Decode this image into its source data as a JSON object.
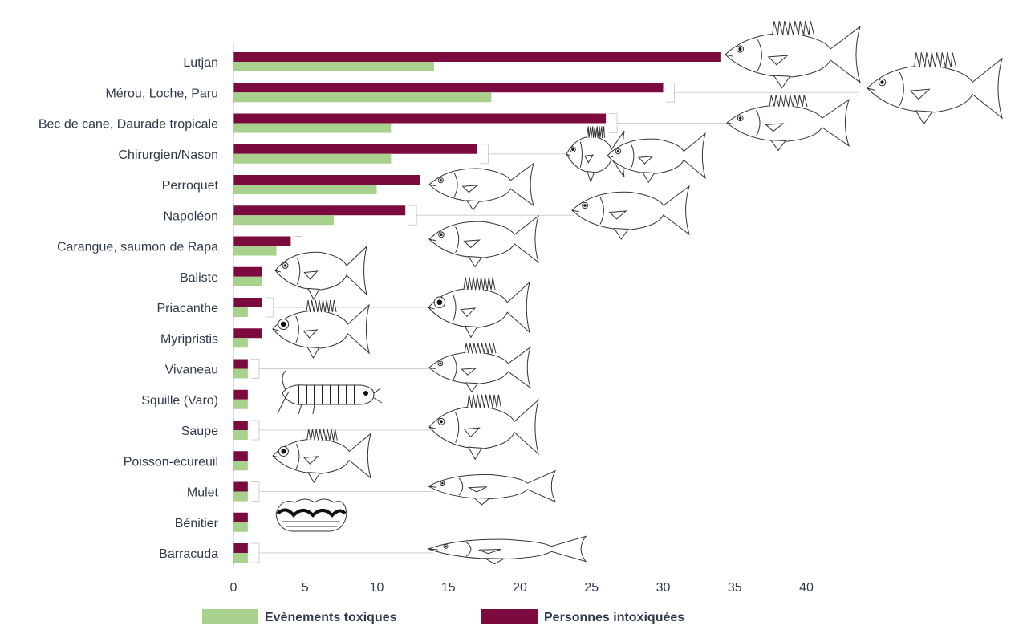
{
  "chart_data": {
    "type": "bar",
    "orientation": "horizontal",
    "categories": [
      "Lutjan",
      "Mérou, Loche, Paru",
      "Bec de cane, Daurade tropicale",
      "Chirurgien/Nason",
      "Perroquet",
      "Napoléon",
      "Carangue, saumon de Rapa",
      "Baliste",
      "Priacanthe",
      "Myripristis",
      "Vivaneau",
      "Squille (Varo)",
      "Saupe",
      "Poisson-écureuil",
      "Mulet",
      "Bénitier",
      "Barracuda"
    ],
    "series": [
      {
        "name": "Personnes intoxiquées",
        "color": "#7b0a3e",
        "values": [
          34,
          30,
          26,
          17,
          13,
          12,
          4,
          2,
          2,
          2,
          1,
          1,
          1,
          1,
          1,
          1,
          1
        ]
      },
      {
        "name": "Evènements toxiques",
        "color": "#a9d18e",
        "values": [
          14,
          18,
          11,
          11,
          10,
          7,
          3,
          2,
          1,
          1,
          1,
          1,
          1,
          1,
          1,
          1,
          1
        ]
      }
    ],
    "xticks": [
      "0",
      "5",
      "10",
      "15",
      "20",
      "25",
      "30",
      "35",
      "40"
    ],
    "xlim": [
      0,
      40
    ],
    "title": "",
    "xlabel": "",
    "ylabel": "",
    "grid": false,
    "legend_position": "bottom",
    "legend": [
      {
        "label": "Evènements toxiques",
        "color": "#a9d18e"
      },
      {
        "label": "Personnes intoxiquées",
        "color": "#7b0a3e"
      }
    ]
  },
  "illustrations": [
    "fish-icon",
    "grouper-icon",
    "snapper-icon",
    "surgeonfish-icon",
    "parrotfish-icon",
    "napoleon-wrasse-icon",
    "trevally-icon",
    "triggerfish-icon",
    "bigeye-icon",
    "soldierfish-icon",
    "squirrelfish-icon",
    "mantis-shrimp-icon",
    "bream-icon",
    "mullet-icon",
    "giant-clam-icon",
    "barracuda-icon"
  ]
}
